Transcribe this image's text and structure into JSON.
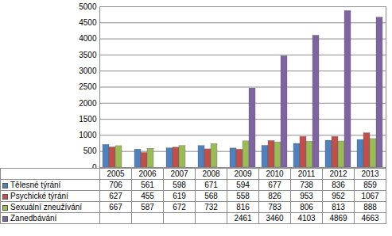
{
  "chart_data": {
    "type": "bar",
    "categories": [
      "2005",
      "2006",
      "2007",
      "2008",
      "2009",
      "2010",
      "2011",
      "2012",
      "2013"
    ],
    "series": [
      {
        "name": "Tělesné týrání",
        "color": "#4f81bd",
        "values": [
          706,
          561,
          598,
          671,
          594,
          677,
          738,
          836,
          859
        ]
      },
      {
        "name": "Psychické týrání",
        "color": "#c0504d",
        "values": [
          627,
          455,
          619,
          568,
          558,
          826,
          953,
          952,
          1067
        ]
      },
      {
        "name": "Sexuální zneužívání",
        "color": "#9bbb59",
        "values": [
          667,
          587,
          672,
          732,
          816,
          783,
          806,
          813,
          888
        ]
      },
      {
        "name": "Zanedbávání",
        "color": "#8064a2",
        "values": [
          null,
          null,
          null,
          null,
          2461,
          3460,
          4103,
          4869,
          4663
        ]
      }
    ],
    "ylim": [
      0,
      5000
    ],
    "yticks": [
      0,
      500,
      1000,
      1500,
      2000,
      2500,
      3000,
      3500,
      4000,
      4500,
      5000
    ],
    "grid": true,
    "tick_labels": "y"
  }
}
